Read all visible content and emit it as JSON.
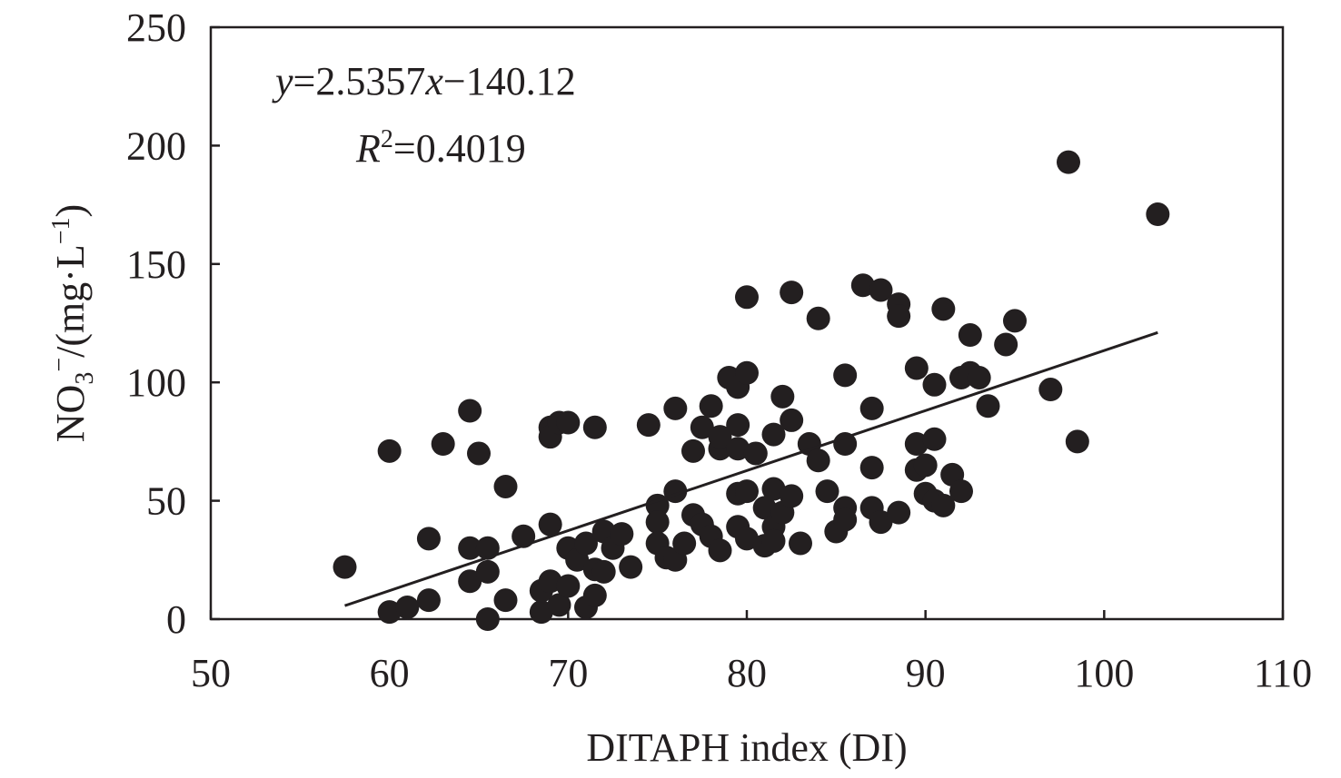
{
  "chart_data": {
    "type": "scatter",
    "title": "",
    "xlabel": "DITAPH index (DI)",
    "ylabel": {
      "base": "NO",
      "sub": "3",
      "sup": "−",
      "unit_open": "/(mg·L",
      "unit_sup": "−1",
      "unit_close": ")"
    },
    "xlim": [
      50,
      110
    ],
    "ylim": [
      0,
      250
    ],
    "xticks": [
      "50",
      "60",
      "70",
      "80",
      "90",
      "100",
      "110"
    ],
    "yticks": [
      "0",
      "50",
      "100",
      "150",
      "200",
      "250"
    ],
    "grid": false,
    "marker_color": "#231f20",
    "equation": {
      "y": "y",
      "rhs1": "=2.5357",
      "x": "x",
      "rhs2": "−140.12"
    },
    "r2": {
      "R": "R",
      "sup": "2",
      "value": "=0.4019"
    },
    "fit": {
      "slope": 2.5357,
      "intercept": -140.12,
      "x_range": [
        57.5,
        103
      ]
    },
    "points": [
      [
        57.5,
        22
      ],
      [
        60,
        71
      ],
      [
        60,
        3
      ],
      [
        61,
        5
      ],
      [
        62.2,
        8
      ],
      [
        62.2,
        34
      ],
      [
        63,
        74
      ],
      [
        64.5,
        88
      ],
      [
        64.5,
        30
      ],
      [
        64.5,
        16
      ],
      [
        65,
        70
      ],
      [
        65.5,
        30
      ],
      [
        65.5,
        20
      ],
      [
        65.5,
        0
      ],
      [
        66.5,
        56
      ],
      [
        66.5,
        8
      ],
      [
        67.5,
        35
      ],
      [
        68.5,
        3
      ],
      [
        68.5,
        12
      ],
      [
        69,
        40
      ],
      [
        69,
        81
      ],
      [
        69,
        77
      ],
      [
        69.5,
        83
      ],
      [
        70,
        83
      ],
      [
        69,
        16
      ],
      [
        69.5,
        6
      ],
      [
        70,
        14
      ],
      [
        70,
        30
      ],
      [
        70.5,
        25
      ],
      [
        71,
        32
      ],
      [
        71,
        5
      ],
      [
        71.5,
        81
      ],
      [
        71.5,
        10
      ],
      [
        71.5,
        21
      ],
      [
        72,
        20
      ],
      [
        72,
        37
      ],
      [
        72.5,
        30
      ],
      [
        73,
        36
      ],
      [
        73.5,
        22
      ],
      [
        74.5,
        82
      ],
      [
        75,
        48
      ],
      [
        75,
        41
      ],
      [
        75,
        32
      ],
      [
        75.5,
        26
      ],
      [
        76,
        25
      ],
      [
        76,
        54
      ],
      [
        76,
        89
      ],
      [
        76.5,
        32
      ],
      [
        77,
        71
      ],
      [
        77,
        44
      ],
      [
        77.5,
        40
      ],
      [
        77.5,
        81
      ],
      [
        78,
        90
      ],
      [
        78,
        35
      ],
      [
        78.5,
        29
      ],
      [
        78.5,
        72
      ],
      [
        78.5,
        77
      ],
      [
        79,
        102
      ],
      [
        79.5,
        98
      ],
      [
        79.5,
        82
      ],
      [
        79.5,
        72
      ],
      [
        79.5,
        53
      ],
      [
        79.5,
        39
      ],
      [
        80,
        136
      ],
      [
        80,
        104
      ],
      [
        80,
        54
      ],
      [
        80,
        34
      ],
      [
        80.5,
        70
      ],
      [
        81,
        31
      ],
      [
        81,
        47
      ],
      [
        81.5,
        78
      ],
      [
        81.5,
        55
      ],
      [
        81.5,
        39
      ],
      [
        81.5,
        33
      ],
      [
        82,
        94
      ],
      [
        82,
        45
      ],
      [
        82.5,
        138
      ],
      [
        82.5,
        84
      ],
      [
        82.5,
        52
      ],
      [
        83,
        32
      ],
      [
        83.5,
        74
      ],
      [
        84,
        127
      ],
      [
        84,
        67
      ],
      [
        84.5,
        54
      ],
      [
        85,
        37
      ],
      [
        85.5,
        103
      ],
      [
        85.5,
        74
      ],
      [
        85.5,
        47
      ],
      [
        85.5,
        42
      ],
      [
        86.5,
        141
      ],
      [
        87,
        89
      ],
      [
        87,
        64
      ],
      [
        87,
        47
      ],
      [
        87.5,
        139
      ],
      [
        87.5,
        41
      ],
      [
        88.5,
        133
      ],
      [
        88.5,
        128
      ],
      [
        88.5,
        45
      ],
      [
        89.5,
        106
      ],
      [
        89.5,
        74
      ],
      [
        89.5,
        63
      ],
      [
        90,
        65
      ],
      [
        90,
        53
      ],
      [
        90.5,
        99
      ],
      [
        90.5,
        76
      ],
      [
        90.5,
        50
      ],
      [
        91,
        48
      ],
      [
        91,
        131
      ],
      [
        91.5,
        61
      ],
      [
        92,
        54
      ],
      [
        92,
        102
      ],
      [
        92.5,
        104
      ],
      [
        92.5,
        120
      ],
      [
        93,
        102
      ],
      [
        93.5,
        90
      ],
      [
        94.5,
        116
      ],
      [
        95,
        126
      ],
      [
        97,
        97
      ],
      [
        98,
        193
      ],
      [
        98.5,
        75
      ],
      [
        103,
        171
      ]
    ]
  }
}
